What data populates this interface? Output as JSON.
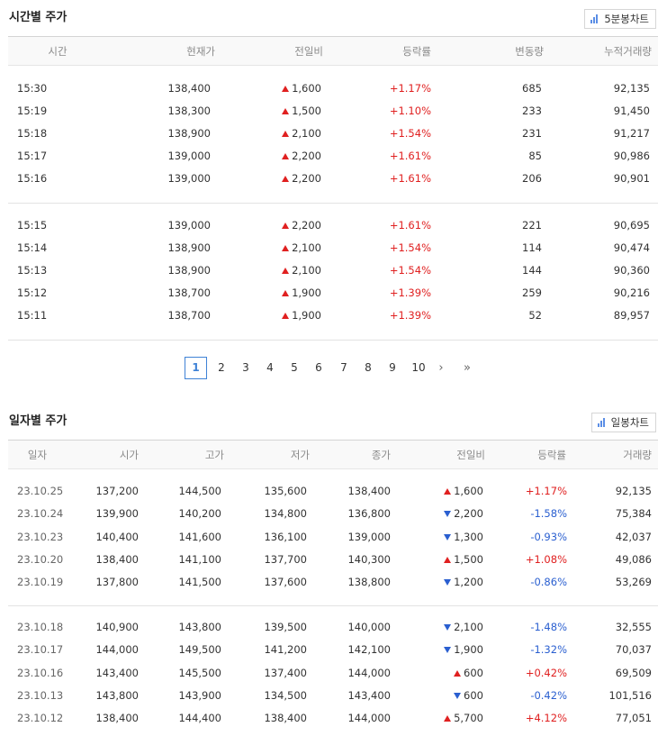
{
  "hourly": {
    "title": "시간별 주가",
    "chart_button": "5분봉차트",
    "headers": [
      "시간",
      "현재가",
      "전일비",
      "등락률",
      "변동량",
      "누적거래량"
    ],
    "groups": [
      [
        {
          "time": "15:30",
          "price": "138,400",
          "change": "1,600",
          "dir": "up",
          "rate": "+1.17%",
          "vol": "685",
          "cum": "92,135"
        },
        {
          "time": "15:19",
          "price": "138,300",
          "change": "1,500",
          "dir": "up",
          "rate": "+1.10%",
          "vol": "233",
          "cum": "91,450"
        },
        {
          "time": "15:18",
          "price": "138,900",
          "change": "2,100",
          "dir": "up",
          "rate": "+1.54%",
          "vol": "231",
          "cum": "91,217"
        },
        {
          "time": "15:17",
          "price": "139,000",
          "change": "2,200",
          "dir": "up",
          "rate": "+1.61%",
          "vol": "85",
          "cum": "90,986"
        },
        {
          "time": "15:16",
          "price": "139,000",
          "change": "2,200",
          "dir": "up",
          "rate": "+1.61%",
          "vol": "206",
          "cum": "90,901"
        }
      ],
      [
        {
          "time": "15:15",
          "price": "139,000",
          "change": "2,200",
          "dir": "up",
          "rate": "+1.61%",
          "vol": "221",
          "cum": "90,695"
        },
        {
          "time": "15:14",
          "price": "138,900",
          "change": "2,100",
          "dir": "up",
          "rate": "+1.54%",
          "vol": "114",
          "cum": "90,474"
        },
        {
          "time": "15:13",
          "price": "138,900",
          "change": "2,100",
          "dir": "up",
          "rate": "+1.54%",
          "vol": "144",
          "cum": "90,360"
        },
        {
          "time": "15:12",
          "price": "138,700",
          "change": "1,900",
          "dir": "up",
          "rate": "+1.39%",
          "vol": "259",
          "cum": "90,216"
        },
        {
          "time": "15:11",
          "price": "138,700",
          "change": "1,900",
          "dir": "up",
          "rate": "+1.39%",
          "vol": "52",
          "cum": "89,957"
        }
      ]
    ]
  },
  "pagination": {
    "current": "1",
    "pages": [
      "1",
      "2",
      "3",
      "4",
      "5",
      "6",
      "7",
      "8",
      "9",
      "10"
    ],
    "next_label": "›",
    "last_label": "»"
  },
  "daily": {
    "title": "일자별 주가",
    "chart_button": "일봉차트",
    "headers": [
      "일자",
      "시가",
      "고가",
      "저가",
      "종가",
      "전일비",
      "등락률",
      "거래량"
    ],
    "groups": [
      [
        {
          "date": "23.10.25",
          "open": "137,200",
          "high": "144,500",
          "low": "135,600",
          "close": "138,400",
          "change": "1,600",
          "dir": "up",
          "rate": "+1.17%",
          "vol": "92,135"
        },
        {
          "date": "23.10.24",
          "open": "139,900",
          "high": "140,200",
          "low": "134,800",
          "close": "136,800",
          "change": "2,200",
          "dir": "down",
          "rate": "-1.58%",
          "vol": "75,384"
        },
        {
          "date": "23.10.23",
          "open": "140,400",
          "high": "141,600",
          "low": "136,100",
          "close": "139,000",
          "change": "1,300",
          "dir": "down",
          "rate": "-0.93%",
          "vol": "42,037"
        },
        {
          "date": "23.10.20",
          "open": "138,400",
          "high": "141,100",
          "low": "137,700",
          "close": "140,300",
          "change": "1,500",
          "dir": "up",
          "rate": "+1.08%",
          "vol": "49,086"
        },
        {
          "date": "23.10.19",
          "open": "137,800",
          "high": "141,500",
          "low": "137,600",
          "close": "138,800",
          "change": "1,200",
          "dir": "down",
          "rate": "-0.86%",
          "vol": "53,269"
        }
      ],
      [
        {
          "date": "23.10.18",
          "open": "140,900",
          "high": "143,800",
          "low": "139,500",
          "close": "140,000",
          "change": "2,100",
          "dir": "down",
          "rate": "-1.48%",
          "vol": "32,555"
        },
        {
          "date": "23.10.17",
          "open": "144,000",
          "high": "149,500",
          "low": "141,200",
          "close": "142,100",
          "change": "1,900",
          "dir": "down",
          "rate": "-1.32%",
          "vol": "70,037"
        },
        {
          "date": "23.10.16",
          "open": "143,400",
          "high": "145,500",
          "low": "137,400",
          "close": "144,000",
          "change": "600",
          "dir": "up",
          "rate": "+0.42%",
          "vol": "69,509"
        },
        {
          "date": "23.10.13",
          "open": "143,800",
          "high": "143,900",
          "low": "134,500",
          "close": "143,400",
          "change": "600",
          "dir": "down",
          "rate": "-0.42%",
          "vol": "101,516"
        },
        {
          "date": "23.10.12",
          "open": "138,400",
          "high": "144,400",
          "low": "138,400",
          "close": "144,000",
          "change": "5,700",
          "dir": "up",
          "rate": "+4.12%",
          "vol": "77,051"
        }
      ]
    ]
  },
  "colors": {
    "up": "#e02020",
    "down": "#2a5fd0",
    "accent": "#3f82d6"
  }
}
